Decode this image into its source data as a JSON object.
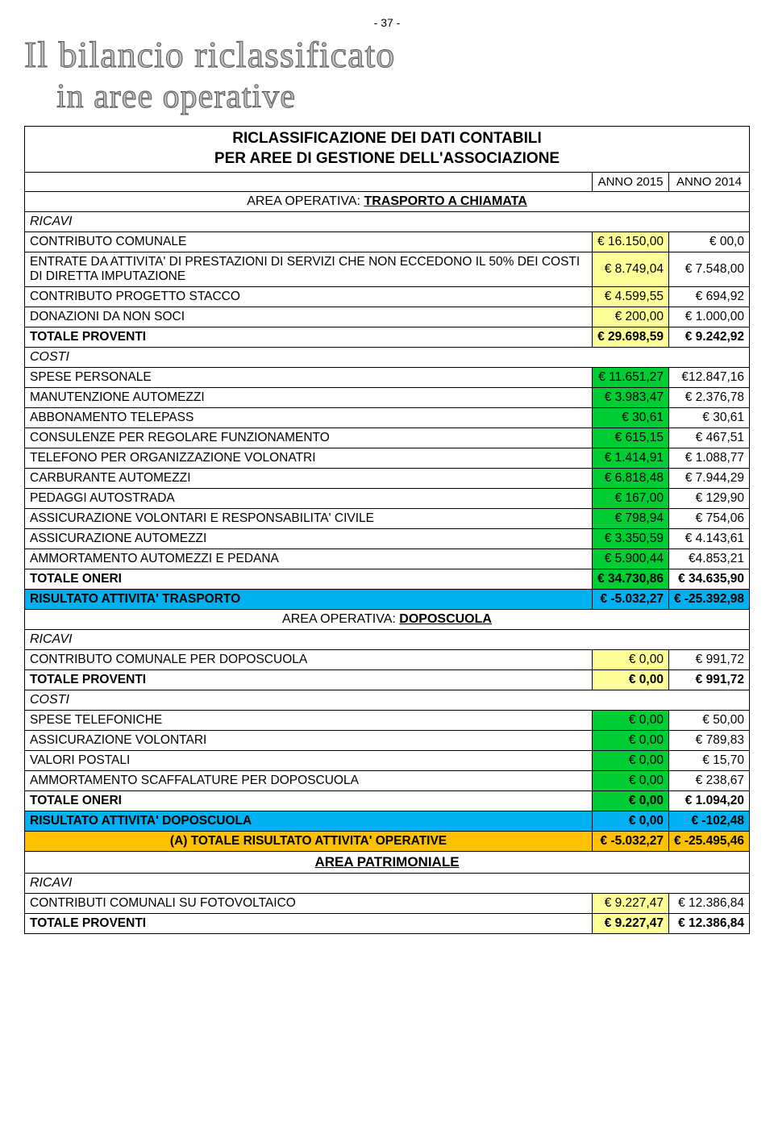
{
  "page_number": "- 37 -",
  "art_title": "Il bilancio riclassificato",
  "art_subtitle": "in aree operative",
  "table_title_l1": "RICLASSIFICAZIONE DEI DATI CONTABILI",
  "table_title_l2": "PER AREE DI GESTIONE DELL'ASSOCIAZIONE",
  "col_year1": "ANNO 2015",
  "col_year2": "ANNO 2014",
  "area_label": "AREA OPERATIVA:",
  "area1_name": "TRASPORTO A CHIAMATA",
  "ricavi_label": "RICAVI",
  "costi_label": "COSTI",
  "colors": {
    "yellow": "#ffff99",
    "green": "#00cc33",
    "cyan": "#00b0f0",
    "orange": "#ffc000",
    "white": "#ffffff"
  },
  "area1_ricavi": [
    {
      "label": "CONTRIBUTO COMUNALE",
      "v1": "€ 16.150,00",
      "v2": "€ 00,0",
      "c1": "#ffff99",
      "c2": "#ffffff"
    },
    {
      "label": "ENTRATE DA ATTIVITA' DI PRESTAZIONI DI SERVIZI CHE NON ECCEDONO IL 50% DEI COSTI DI DIRETTA IMPUTAZIONE",
      "v1": "€ 8.749,04",
      "v2": "€ 7.548,00",
      "c1": "#ffff99",
      "c2": "#ffffff"
    },
    {
      "label": "CONTRIBUTO PROGETTO STACCO",
      "v1": "€ 4.599,55",
      "v2": "€ 694,92",
      "c1": "#ffff99",
      "c2": "#ffffff"
    },
    {
      "label": "DONAZIONI DA NON SOCI",
      "v1": "€ 200,00",
      "v2": "€ 1.000,00",
      "c1": "#ffff99",
      "c2": "#ffffff"
    }
  ],
  "area1_tot_prov": {
    "label": "TOTALE PROVENTI",
    "v1": "€ 29.698,59",
    "v2": "€ 9.242,92",
    "c1": "#ffff99",
    "c2": "#ffffff"
  },
  "area1_costi": [
    {
      "label": "SPESE PERSONALE",
      "v1": "€ 11.651,27",
      "v2": "€12.847,16",
      "c1": "#00cc33",
      "c2": "#ffffff"
    },
    {
      "label": "MANUTENZIONE AUTOMEZZI",
      "v1": "€ 3.983,47",
      "v2": "€ 2.376,78",
      "c1": "#00cc33",
      "c2": "#ffffff"
    },
    {
      "label": "ABBONAMENTO TELEPASS",
      "v1": "€ 30,61",
      "v2": "€ 30,61",
      "c1": "#00cc33",
      "c2": "#ffffff"
    },
    {
      "label": "CONSULENZE PER REGOLARE FUNZIONAMENTO",
      "v1": "€ 615,15",
      "v2": "€ 467,51",
      "c1": "#00cc33",
      "c2": "#ffffff"
    },
    {
      "label": "TELEFONO PER ORGANIZZAZIONE VOLONATRI",
      "v1": "€ 1.414,91",
      "v2": "€ 1.088,77",
      "c1": "#00cc33",
      "c2": "#ffffff"
    },
    {
      "label": "CARBURANTE AUTOMEZZI",
      "v1": "€ 6.818,48",
      "v2": "€ 7.944,29",
      "c1": "#00cc33",
      "c2": "#ffffff"
    },
    {
      "label": "PEDAGGI AUTOSTRADA",
      "v1": "€ 167,00",
      "v2": "€ 129,90",
      "c1": "#00cc33",
      "c2": "#ffffff"
    },
    {
      "label": "ASSICURAZIONE VOLONTARI E RESPONSABILITA' CIVILE",
      "v1": "€ 798,94",
      "v2": "€ 754,06",
      "c1": "#00cc33",
      "c2": "#ffffff"
    },
    {
      "label": "ASSICURAZIONE AUTOMEZZI",
      "v1": "€ 3.350,59",
      "v2": "€ 4.143,61",
      "c1": "#00cc33",
      "c2": "#ffffff"
    },
    {
      "label": "AMMORTAMENTO AUTOMEZZI E PEDANA",
      "v1": "€ 5.900,44",
      "v2": "€4.853,21",
      "c1": "#00cc33",
      "c2": "#ffffff"
    }
  ],
  "area1_tot_oneri": {
    "label": "TOTALE ONERI",
    "v1": "€ 34.730,86",
    "v2": "€ 34.635,90",
    "c1": "#00cc33",
    "c2": "#ffffff"
  },
  "area1_risultato": {
    "label": "RISULTATO ATTIVITA' TRASPORTO",
    "v1": "€ -5.032,27",
    "v2": "€ -25.392,98",
    "bg": "#00b0f0"
  },
  "area2_name": "DOPOSCUOLA",
  "area2_ricavi": [
    {
      "label": "CONTRIBUTO COMUNALE PER DOPOSCUOLA",
      "v1": "€ 0,00",
      "v2": "€ 991,72",
      "c1": "#ffff99",
      "c2": "#ffffff"
    }
  ],
  "area2_tot_prov": {
    "label": "TOTALE PROVENTI",
    "v1": "€ 0,00",
    "v2": "€ 991,72",
    "c1": "#ffff99",
    "c2": "#ffffff"
  },
  "area2_costi": [
    {
      "label": "SPESE  TELEFONICHE",
      "v1": "€ 0,00",
      "v2": "€ 50,00",
      "c1": "#00cc33",
      "c2": "#ffffff"
    },
    {
      "label": "ASSICURAZIONE VOLONTARI",
      "v1": "€ 0,00",
      "v2": "€ 789,83",
      "c1": "#00cc33",
      "c2": "#ffffff"
    },
    {
      "label": "VALORI POSTALI",
      "v1": "€ 0,00",
      "v2": "€ 15,70",
      "c1": "#00cc33",
      "c2": "#ffffff"
    },
    {
      "label": "AMMORTAMENTO SCAFFALATURE PER DOPOSCUOLA",
      "v1": "€ 0,00",
      "v2": "€ 238,67",
      "c1": "#00cc33",
      "c2": "#ffffff"
    }
  ],
  "area2_tot_oneri": {
    "label": "TOTALE ONERI",
    "v1": "€ 0,00",
    "v2": "€ 1.094,20",
    "c1": "#00cc33",
    "c2": "#ffffff"
  },
  "area2_risultato": {
    "label": "RISULTATO ATTIVITA' DOPOSCUOLA",
    "v1": "€ 0,00",
    "v2": "€ -102,48",
    "bg": "#00b0f0"
  },
  "tot_operative": {
    "label": "(A) TOTALE RISULTATO ATTIVITA' OPERATIVE",
    "v1": "€ -5.032,27",
    "v2": "€ -25.495,46",
    "bg": "#ffc000"
  },
  "area_patr": "AREA PATRIMONIALE",
  "patr_ricavi": [
    {
      "label": "CONTRIBUTI COMUNALI SU FOTOVOLTAICO",
      "v1": "€ 9.227,47",
      "v2": "€ 12.386,84",
      "c1": "#ffff99",
      "c2": "#ffffff"
    }
  ],
  "patr_tot_prov": {
    "label": "TOTALE PROVENTI",
    "v1": "€ 9.227,47",
    "v2": "€ 12.386,84",
    "c1": "#ffff99",
    "c2": "#ffffff"
  }
}
